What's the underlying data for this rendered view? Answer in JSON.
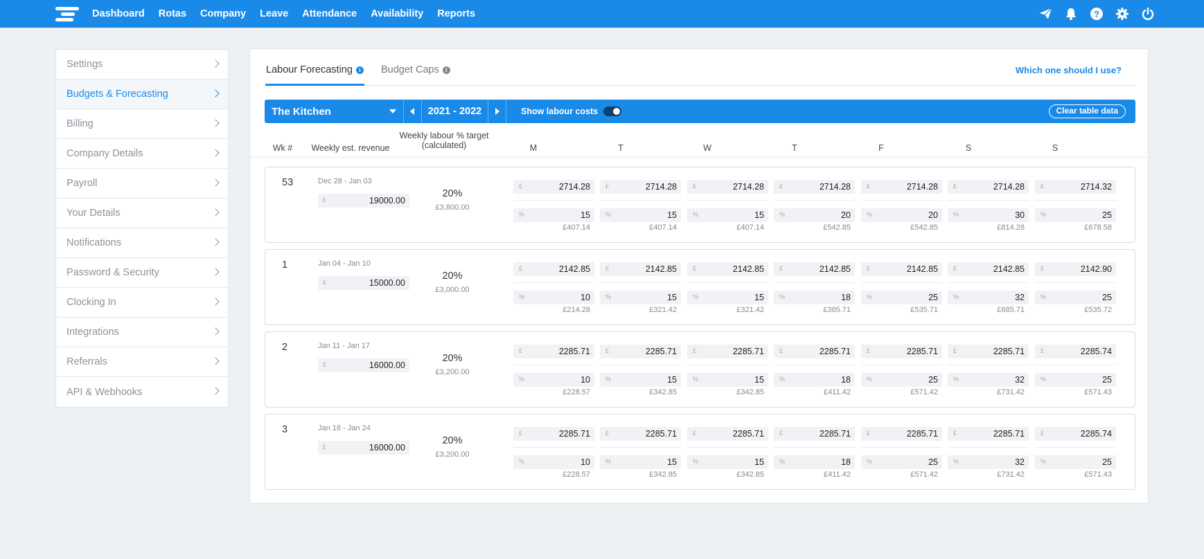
{
  "nav": {
    "items": [
      "Dashboard",
      "Rotas",
      "Company",
      "Leave",
      "Attendance",
      "Availability",
      "Reports"
    ],
    "icons": [
      "send-icon",
      "bell-icon",
      "help-icon",
      "gear-icon",
      "power-icon"
    ]
  },
  "sidebar": {
    "items": [
      {
        "label": "Settings"
      },
      {
        "label": "Budgets & Forecasting"
      },
      {
        "label": "Billing"
      },
      {
        "label": "Company Details"
      },
      {
        "label": "Payroll"
      },
      {
        "label": "Your Details"
      },
      {
        "label": "Notifications"
      },
      {
        "label": "Password & Security"
      },
      {
        "label": "Clocking In"
      },
      {
        "label": "Integrations"
      },
      {
        "label": "Referrals"
      },
      {
        "label": "API & Webhooks"
      }
    ],
    "active_index": 1
  },
  "tabs": {
    "labour": "Labour Forecasting",
    "budget": "Budget Caps",
    "which": "Which one should I use?"
  },
  "filters": {
    "site": "The Kitchen",
    "year": "2021 - 2022",
    "show_labour": "Show labour costs",
    "clear": "Clear table data"
  },
  "columns": {
    "wk": "Wk #",
    "revenue": "Weekly est. revenue",
    "target_line1": "Weekly labour % target",
    "target_line2": "(calculated)",
    "days": [
      "M",
      "T",
      "W",
      "T",
      "F",
      "S",
      "S"
    ]
  },
  "currency_symbol": "£",
  "percent_symbol": "%",
  "weeks": [
    {
      "num": "53",
      "range": "Dec 28 - Jan 03",
      "revenue": "19000.00",
      "target_pct": "20%",
      "target_amt": "£3,800.00",
      "days": [
        {
          "rev": "2714.28",
          "pct": "15",
          "cost": "£407.14"
        },
        {
          "rev": "2714.28",
          "pct": "15",
          "cost": "£407.14"
        },
        {
          "rev": "2714.28",
          "pct": "15",
          "cost": "£407.14"
        },
        {
          "rev": "2714.28",
          "pct": "20",
          "cost": "£542.85"
        },
        {
          "rev": "2714.28",
          "pct": "20",
          "cost": "£542.85"
        },
        {
          "rev": "2714.28",
          "pct": "30",
          "cost": "£814.28"
        },
        {
          "rev": "2714.32",
          "pct": "25",
          "cost": "£678.58"
        }
      ]
    },
    {
      "num": "1",
      "range": "Jan 04 - Jan 10",
      "revenue": "15000.00",
      "target_pct": "20%",
      "target_amt": "£3,000.00",
      "days": [
        {
          "rev": "2142.85",
          "pct": "10",
          "cost": "£214.28"
        },
        {
          "rev": "2142.85",
          "pct": "15",
          "cost": "£321.42"
        },
        {
          "rev": "2142.85",
          "pct": "15",
          "cost": "£321.42"
        },
        {
          "rev": "2142.85",
          "pct": "18",
          "cost": "£385.71"
        },
        {
          "rev": "2142.85",
          "pct": "25",
          "cost": "£535.71"
        },
        {
          "rev": "2142.85",
          "pct": "32",
          "cost": "£685.71"
        },
        {
          "rev": "2142.90",
          "pct": "25",
          "cost": "£535.72"
        }
      ]
    },
    {
      "num": "2",
      "range": "Jan 11 - Jan 17",
      "revenue": "16000.00",
      "target_pct": "20%",
      "target_amt": "£3,200.00",
      "days": [
        {
          "rev": "2285.71",
          "pct": "10",
          "cost": "£228.57"
        },
        {
          "rev": "2285.71",
          "pct": "15",
          "cost": "£342.85"
        },
        {
          "rev": "2285.71",
          "pct": "15",
          "cost": "£342.85"
        },
        {
          "rev": "2285.71",
          "pct": "18",
          "cost": "£411.42"
        },
        {
          "rev": "2285.71",
          "pct": "25",
          "cost": "£571.42"
        },
        {
          "rev": "2285.71",
          "pct": "32",
          "cost": "£731.42"
        },
        {
          "rev": "2285.74",
          "pct": "25",
          "cost": "£571.43"
        }
      ]
    },
    {
      "num": "3",
      "range": "Jan 18 - Jan 24",
      "revenue": "16000.00",
      "target_pct": "20%",
      "target_amt": "£3,200.00",
      "days": [
        {
          "rev": "2285.71",
          "pct": "10",
          "cost": "£228.57"
        },
        {
          "rev": "2285.71",
          "pct": "15",
          "cost": "£342.85"
        },
        {
          "rev": "2285.71",
          "pct": "15",
          "cost": "£342.85"
        },
        {
          "rev": "2285.71",
          "pct": "18",
          "cost": "£411.42"
        },
        {
          "rev": "2285.71",
          "pct": "25",
          "cost": "£571.42"
        },
        {
          "rev": "2285.71",
          "pct": "32",
          "cost": "£731.42"
        },
        {
          "rev": "2285.74",
          "pct": "25",
          "cost": "£571.43"
        }
      ]
    }
  ]
}
